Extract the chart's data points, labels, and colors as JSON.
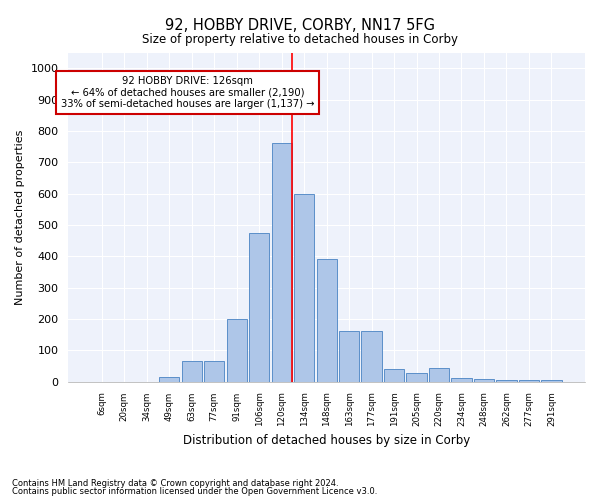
{
  "title": "92, HOBBY DRIVE, CORBY, NN17 5FG",
  "subtitle": "Size of property relative to detached houses in Corby",
  "xlabel": "Distribution of detached houses by size in Corby",
  "ylabel": "Number of detached properties",
  "footnote1": "Contains HM Land Registry data © Crown copyright and database right 2024.",
  "footnote2": "Contains public sector information licensed under the Open Government Licence v3.0.",
  "annotation_line1": "92 HOBBY DRIVE: 126sqm",
  "annotation_line2": "← 64% of detached houses are smaller (2,190)",
  "annotation_line3": "33% of semi-detached houses are larger (1,137) →",
  "bar_color": "#aec6e8",
  "bar_edge_color": "#5b8fc9",
  "vline_color": "red",
  "annotation_box_edge_color": "#cc0000",
  "background_color": "#eef2fb",
  "categories": [
    "6sqm",
    "20sqm",
    "34sqm",
    "49sqm",
    "63sqm",
    "77sqm",
    "91sqm",
    "106sqm",
    "120sqm",
    "134sqm",
    "148sqm",
    "163sqm",
    "177sqm",
    "191sqm",
    "205sqm",
    "220sqm",
    "234sqm",
    "248sqm",
    "262sqm",
    "277sqm",
    "291sqm"
  ],
  "values": [
    0,
    0,
    0,
    15,
    65,
    65,
    200,
    475,
    760,
    600,
    390,
    160,
    160,
    40,
    28,
    43,
    12,
    8,
    5,
    5,
    5
  ],
  "ylim": [
    0,
    1050
  ],
  "yticks": [
    0,
    100,
    200,
    300,
    400,
    500,
    600,
    700,
    800,
    900,
    1000
  ],
  "vline_x_index": 8.45
}
